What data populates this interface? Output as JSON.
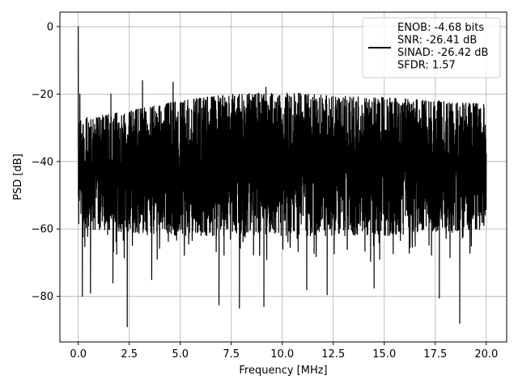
{
  "chart_data": {
    "type": "line",
    "xlabel": "Frequency [MHz]",
    "ylabel": "PSD [dB]",
    "xlim": [
      -0.9,
      21.0
    ],
    "ylim": [
      -93.5,
      4.3
    ],
    "xticks": [
      0.0,
      2.5,
      5.0,
      7.5,
      10.0,
      12.5,
      15.0,
      17.5,
      20.0
    ],
    "xtick_labels": [
      "0.0",
      "2.5",
      "5.0",
      "7.5",
      "10.0",
      "12.5",
      "15.0",
      "17.5",
      "20.0"
    ],
    "yticks": [
      0,
      -20,
      -40,
      -60,
      -80
    ],
    "ytick_labels": [
      "0",
      "−20",
      "−40",
      "−60",
      "−80"
    ],
    "grid": true,
    "legend_position": "top-right",
    "series": [
      {
        "name": "ENOB: -4.68 bits\nSNR: -26.41 dB\nSINAD: -26.42 dB\nSFDR: 1.57",
        "color": "#000000",
        "f_range": [
          0.0,
          20.0
        ],
        "upper_envelope": {
          "x": [
            0.0,
            0.5,
            2.5,
            5.0,
            7.5,
            10.0,
            12.5,
            15.0,
            17.5,
            20.0
          ],
          "y": [
            -27,
            -27,
            -25,
            -22,
            -20,
            -19.5,
            -20.5,
            -21,
            -22,
            -23
          ]
        },
        "lower_envelope": {
          "x": [
            0.0,
            2.5,
            5.0,
            7.5,
            10.0,
            12.5,
            15.0,
            17.5,
            20.0
          ],
          "y": [
            -60,
            -61,
            -62,
            -62,
            -62,
            -62,
            -62,
            -61,
            -60
          ]
        },
        "peaks": [
          {
            "x": 0.0,
            "y": 0.0
          },
          {
            "x": 0.08,
            "y": -20.0
          },
          {
            "x": 1.6,
            "y": -20.0
          },
          {
            "x": 3.15,
            "y": -16.0
          },
          {
            "x": 4.65,
            "y": -16.5
          },
          {
            "x": 9.2,
            "y": -18.0
          }
        ],
        "dips": [
          {
            "x": 0.2,
            "y": -80.0
          },
          {
            "x": 0.6,
            "y": -79.0
          },
          {
            "x": 1.7,
            "y": -76.0
          },
          {
            "x": 2.4,
            "y": -89.0
          },
          {
            "x": 3.6,
            "y": -75.0
          },
          {
            "x": 6.9,
            "y": -82.5
          },
          {
            "x": 7.9,
            "y": -83.5
          },
          {
            "x": 9.1,
            "y": -83.0
          },
          {
            "x": 11.2,
            "y": -78.0
          },
          {
            "x": 12.2,
            "y": -79.5
          },
          {
            "x": 14.5,
            "y": -77.5
          },
          {
            "x": 17.7,
            "y": -80.5
          },
          {
            "x": 18.7,
            "y": -88.0
          }
        ]
      }
    ]
  }
}
